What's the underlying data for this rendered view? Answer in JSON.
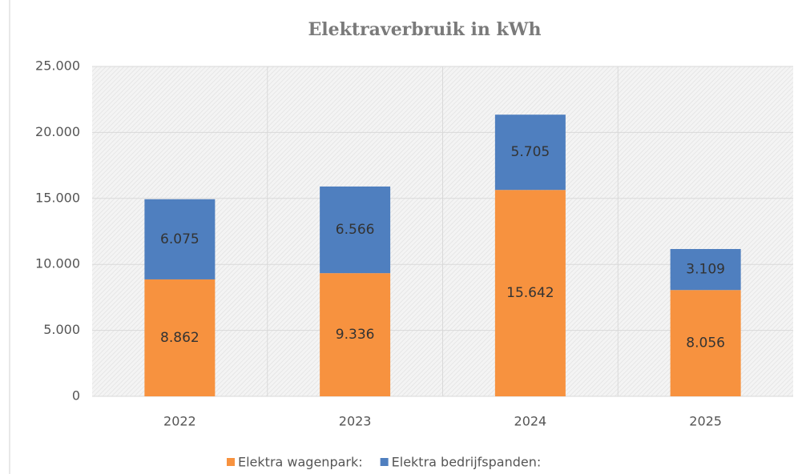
{
  "chart_data": {
    "type": "stacked_bar",
    "title": "Elektraverbruik in kWh",
    "categories": [
      "2022",
      "2023",
      "2024",
      "2025"
    ],
    "series": [
      {
        "name": "Elektra wagenpark:",
        "color": "#f7923f",
        "values": [
          8862,
          9336,
          15642,
          8056
        ],
        "value_labels": [
          "8.862",
          "9.336",
          "15.642",
          "8.056"
        ]
      },
      {
        "name": "Elektra bedrijfspanden:",
        "color": "#4f7fbf",
        "values": [
          6075,
          6566,
          5705,
          3109
        ],
        "value_labels": [
          "6.075",
          "6.566",
          "5.705",
          "3.109"
        ]
      }
    ],
    "ylim": [
      0,
      25000
    ],
    "yticks": [
      0,
      {
        "value": 5000,
        "label": "5.000"
      },
      {
        "value": 10000,
        "label": "10.000"
      },
      {
        "value": 15000,
        "label": "15.000"
      },
      {
        "value": 20000,
        "label": "20.000"
      },
      {
        "value": 25000,
        "label": "25.000"
      }
    ],
    "grid": true,
    "legend": "bottom"
  }
}
